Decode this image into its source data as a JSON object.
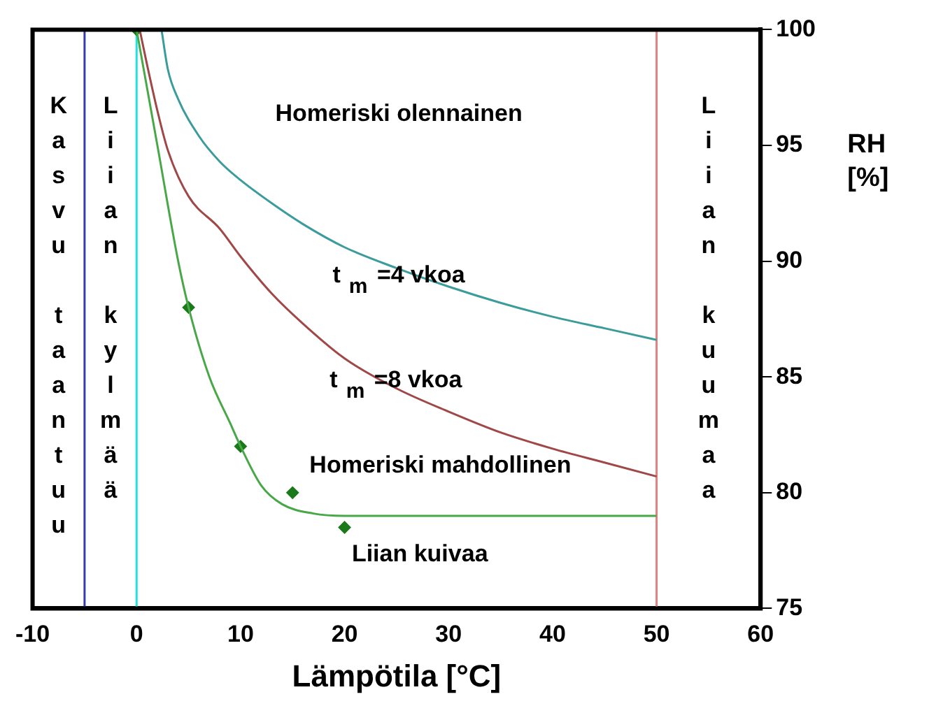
{
  "chart_data": {
    "type": "line",
    "xlabel": "Lämpötila [°C]",
    "ylabel": "RH [%]",
    "xlim": [
      -10,
      60
    ],
    "xticks": [
      -10,
      0,
      10,
      20,
      30,
      40,
      50,
      60
    ],
    "ylim": [
      75,
      100
    ],
    "yticks": [
      75,
      80,
      85,
      90,
      95,
      100
    ],
    "grid": false,
    "legend": false,
    "marker": "none",
    "series": [
      {
        "color": "#3c9c9c",
        "x": [
          2.4,
          3,
          4,
          6,
          8,
          10,
          13,
          16,
          20,
          25,
          30,
          35,
          40,
          45,
          50
        ],
        "values": [
          100,
          98.3,
          97,
          95.4,
          94.3,
          93.5,
          92.5,
          91.6,
          90.6,
          89.7,
          88.9,
          88.2,
          87.6,
          87.1,
          86.6
        ]
      },
      {
        "color": "#a04848",
        "x": [
          0.3,
          1,
          2,
          3,
          5,
          8,
          10,
          13,
          16,
          20,
          25,
          30,
          35,
          40,
          45,
          50
        ],
        "values": [
          100,
          98.5,
          96.5,
          94.8,
          92.8,
          91.4,
          90.2,
          88.6,
          87.3,
          85.8,
          84.5,
          83.5,
          82.6,
          81.9,
          81.3,
          80.7
        ]
      },
      {
        "color": "#48a848",
        "x": [
          0,
          2,
          4,
          5,
          7,
          9,
          10,
          12,
          14,
          17,
          20,
          30,
          40,
          50
        ],
        "values": [
          100,
          95,
          90,
          88,
          85,
          83,
          82,
          80.3,
          79.5,
          79.1,
          79,
          79,
          79,
          79
        ]
      },
      {
        "type": "scatter",
        "color": "#1a7a1a",
        "marker": "diamond",
        "x": [
          0,
          5,
          10,
          15,
          20
        ],
        "values": [
          100,
          88,
          82,
          80,
          78.5
        ]
      }
    ],
    "ref_lines": [
      {
        "axis": "x",
        "value": -5,
        "label": "Kasvu taantuu",
        "color": "#3838b0"
      },
      {
        "axis": "x",
        "value": 0,
        "label": "Liian kylmää",
        "color": "#20e0e0"
      },
      {
        "axis": "x",
        "value": 50,
        "label": "Liian kuumaa",
        "color": "#e08080"
      }
    ],
    "annotations": [
      "Homeriski olennainen",
      "t$_{m}$ =4 vkoa",
      "t$_{m}$ =8 vkoa",
      "Homeriski mahdollinen",
      "Liian kuivaa"
    ]
  }
}
